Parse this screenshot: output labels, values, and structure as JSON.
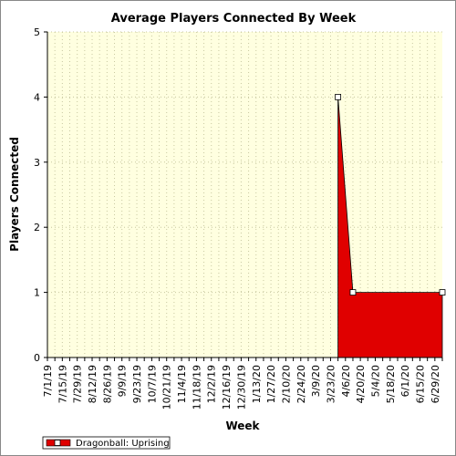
{
  "chart_data": {
    "type": "area",
    "title": "Average Players Connected By Week",
    "xlabel": "Week",
    "ylabel": "Players Connected",
    "ylim": [
      0,
      5
    ],
    "yticks": [
      0,
      1,
      2,
      3,
      4,
      5
    ],
    "grid": true,
    "legend_position": "bottom-left",
    "tick_labels": [
      "7/1/19",
      "7/15/19",
      "7/29/19",
      "8/12/19",
      "8/26/19",
      "9/9/19",
      "9/23/19",
      "10/7/19",
      "10/21/19",
      "11/4/19",
      "11/18/19",
      "12/2/19",
      "12/16/19",
      "12/30/19",
      "1/13/20",
      "1/27/20",
      "2/10/20",
      "2/24/20",
      "3/9/20",
      "3/23/20",
      "4/6/20",
      "4/20/20",
      "5/4/20",
      "5/18/20",
      "6/1/20",
      "6/15/20",
      "6/29/20"
    ],
    "series": [
      {
        "name": "Dragonball: Uprising",
        "color": "#e00000",
        "x": [
          "3/30/20",
          "4/13/20",
          "7/6/20"
        ],
        "y": [
          4,
          1,
          1
        ]
      }
    ]
  },
  "colors": {
    "plot_background": "#ffffe0",
    "grid": "#c8c8a0",
    "series_fill": "#e00000"
  }
}
